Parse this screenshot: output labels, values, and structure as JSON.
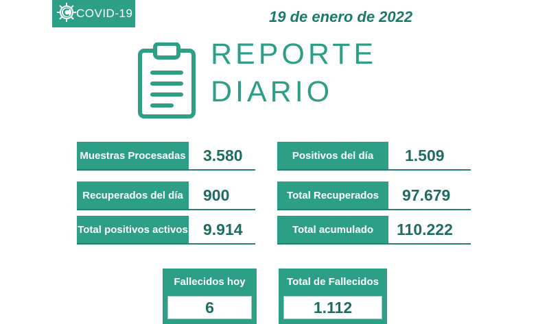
{
  "badge": {
    "label": "COVID-19",
    "icon": "virus-c-icon"
  },
  "date": "19 de enero de 2022",
  "title": {
    "line1": "REPORTE",
    "line2": "DIARIO",
    "icon": "clipboard-icon"
  },
  "stats": {
    "muestras": {
      "label": "Muestras Procesadas",
      "value": "3.580"
    },
    "positivos_dia": {
      "label": "Positivos del día",
      "value": "1.509"
    },
    "recuperados_dia": {
      "label": "Recuperados del día",
      "value": "900"
    },
    "total_recuperados": {
      "label": "Total Recuperados",
      "value": "97.679"
    },
    "positivos_activos": {
      "label": "Total positivos activos",
      "value": "9.914"
    },
    "total_acumulado": {
      "label": "Total acumulado",
      "value": "110.222"
    }
  },
  "deaths": {
    "hoy": {
      "label": "Fallecidos hoy",
      "value": "6"
    },
    "total": {
      "label": "Total de Fallecidos",
      "value": "1.112"
    }
  },
  "colors": {
    "accent": "#2c9f86",
    "text": "#1f6d61",
    "date": "#1b7a6a"
  }
}
